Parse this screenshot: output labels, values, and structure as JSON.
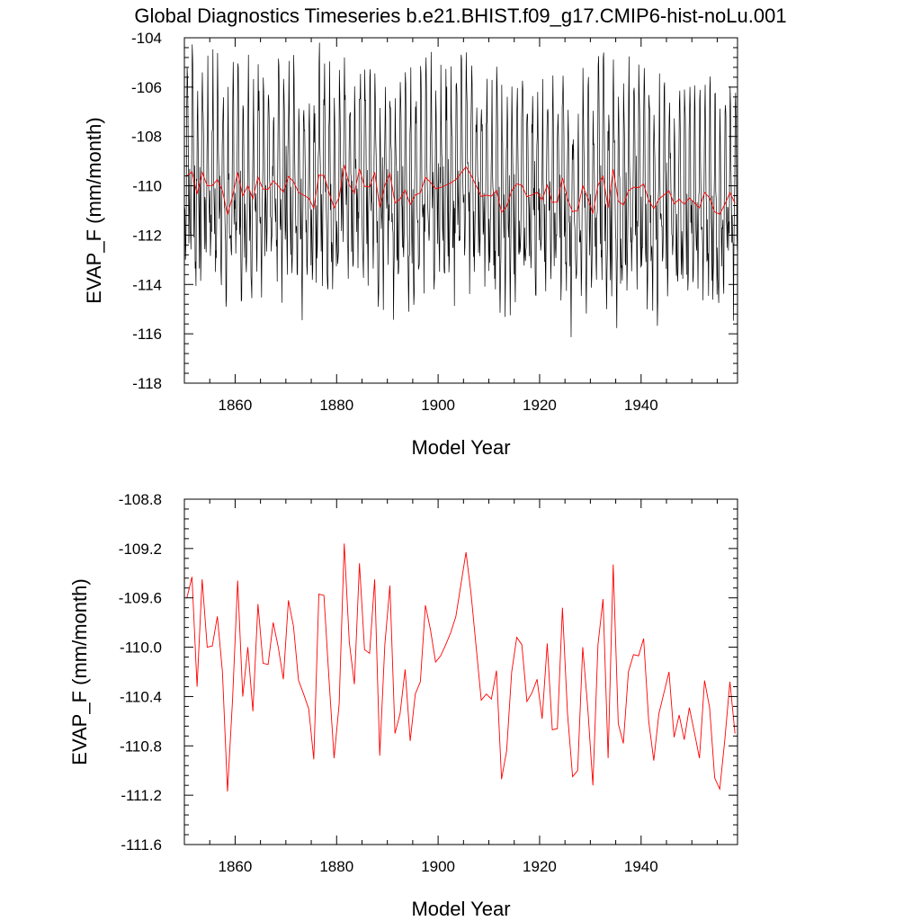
{
  "page": {
    "title": "Global Diagnostics Timeseries b.e21.BHIST.f09_g17.CMIP6-hist-noLu.001"
  },
  "chart_data": [
    {
      "type": "line",
      "xlabel": "Model Year",
      "ylabel": "EVAP_F (mm/month)",
      "xlim": [
        1850,
        1959
      ],
      "ylim": [
        -118,
        -104
      ],
      "xticks": [
        1860,
        1880,
        1900,
        1920,
        1940
      ],
      "xtick_labels": [
        "1860",
        "1880",
        "1900",
        "1920",
        "1940"
      ],
      "yticks": [
        -104,
        -106,
        -108,
        -110,
        -112,
        -114,
        -116,
        -118
      ],
      "ytick_labels": [
        "-104",
        "-106",
        "-108",
        "-110",
        "-112",
        "-114",
        "-116",
        "-118"
      ],
      "grid": false,
      "monthly_series": {
        "color": "#000000",
        "start_year": 1850,
        "months_per_year": 12,
        "annual_cycle_offsets": [
          -0.2,
          -1.8,
          -3.0,
          -2.2,
          -0.6,
          1.3,
          3.0,
          3.3,
          2.0,
          0.3,
          -1.0,
          -1.5
        ]
      },
      "series": [
        {
          "color": "#ff0000",
          "x": [
            1850,
            1851,
            1852,
            1853,
            1854,
            1855,
            1856,
            1857,
            1858,
            1859,
            1860,
            1861,
            1862,
            1863,
            1864,
            1865,
            1866,
            1867,
            1868,
            1869,
            1870,
            1871,
            1872,
            1873,
            1874,
            1875,
            1876,
            1877,
            1878,
            1879,
            1880,
            1881,
            1882,
            1883,
            1884,
            1885,
            1886,
            1887,
            1888,
            1889,
            1890,
            1891,
            1892,
            1893,
            1894,
            1895,
            1896,
            1897,
            1898,
            1899,
            1900,
            1901,
            1902,
            1903,
            1904,
            1905,
            1906,
            1907,
            1908,
            1909,
            1910,
            1911,
            1912,
            1913,
            1914,
            1915,
            1916,
            1917,
            1918,
            1919,
            1920,
            1921,
            1922,
            1923,
            1924,
            1925,
            1926,
            1927,
            1928,
            1929,
            1930,
            1931,
            1932,
            1933,
            1934,
            1935,
            1936,
            1937,
            1938,
            1939,
            1940,
            1941,
            1942,
            1943,
            1944,
            1945,
            1946,
            1947,
            1948,
            1949,
            1950,
            1951,
            1952,
            1953,
            1954,
            1955,
            1956,
            1957,
            1958
          ],
          "values": [
            -109.6,
            -109.43,
            -110.32,
            -109.45,
            -110.0,
            -109.99,
            -109.75,
            -110.2,
            -111.17,
            -110.42,
            -109.46,
            -110.4,
            -110.0,
            -110.52,
            -109.65,
            -110.13,
            -110.14,
            -109.8,
            -110.0,
            -110.26,
            -109.62,
            -109.83,
            -110.27,
            -110.38,
            -110.5,
            -110.91,
            -109.57,
            -109.58,
            -110.26,
            -110.9,
            -110.46,
            -109.16,
            -109.96,
            -110.3,
            -109.32,
            -110.02,
            -110.05,
            -109.45,
            -110.88,
            -109.98,
            -109.5,
            -110.7,
            -110.54,
            -110.18,
            -110.76,
            -110.38,
            -110.28,
            -109.66,
            -109.86,
            -110.12,
            -110.07,
            -109.98,
            -109.88,
            -109.75,
            -109.49,
            -109.23,
            -109.57,
            -110.0,
            -110.43,
            -110.38,
            -110.42,
            -110.19,
            -111.07,
            -110.84,
            -110.2,
            -109.92,
            -109.98,
            -110.44,
            -110.37,
            -110.26,
            -110.58,
            -109.97,
            -110.67,
            -110.66,
            -109.68,
            -110.54,
            -111.05,
            -111.0,
            -110.0,
            -110.5,
            -111.12,
            -109.98,
            -109.61,
            -110.9,
            -109.33,
            -110.62,
            -110.78,
            -110.2,
            -110.06,
            -110.07,
            -109.93,
            -110.6,
            -110.92,
            -110.54,
            -110.37,
            -110.2,
            -110.73,
            -110.55,
            -110.75,
            -110.49,
            -110.69,
            -110.9,
            -110.27,
            -110.49,
            -111.06,
            -111.15,
            -110.75,
            -110.28,
            -110.7
          ]
        }
      ]
    },
    {
      "type": "line",
      "xlabel": "Model Year",
      "ylabel": "EVAP_F (mm/month)",
      "xlim": [
        1850,
        1959
      ],
      "ylim": [
        -111.6,
        -108.8
      ],
      "xticks": [
        1860,
        1880,
        1900,
        1920,
        1940
      ],
      "xtick_labels": [
        "1860",
        "1880",
        "1900",
        "1920",
        "1940"
      ],
      "yticks": [
        -108.8,
        -109.2,
        -109.6,
        -110.0,
        -110.4,
        -110.8,
        -111.2,
        -111.6
      ],
      "ytick_labels": [
        "-108.8",
        "-109.2",
        "-109.6",
        "-110.0",
        "-110.4",
        "-110.8",
        "-111.2",
        "-111.6"
      ],
      "grid": false,
      "series": [
        {
          "color": "#ff0000",
          "x": [
            1850,
            1851,
            1852,
            1853,
            1854,
            1855,
            1856,
            1857,
            1858,
            1859,
            1860,
            1861,
            1862,
            1863,
            1864,
            1865,
            1866,
            1867,
            1868,
            1869,
            1870,
            1871,
            1872,
            1873,
            1874,
            1875,
            1876,
            1877,
            1878,
            1879,
            1880,
            1881,
            1882,
            1883,
            1884,
            1885,
            1886,
            1887,
            1888,
            1889,
            1890,
            1891,
            1892,
            1893,
            1894,
            1895,
            1896,
            1897,
            1898,
            1899,
            1900,
            1901,
            1902,
            1903,
            1904,
            1905,
            1906,
            1907,
            1908,
            1909,
            1910,
            1911,
            1912,
            1913,
            1914,
            1915,
            1916,
            1917,
            1918,
            1919,
            1920,
            1921,
            1922,
            1923,
            1924,
            1925,
            1926,
            1927,
            1928,
            1929,
            1930,
            1931,
            1932,
            1933,
            1934,
            1935,
            1936,
            1937,
            1938,
            1939,
            1940,
            1941,
            1942,
            1943,
            1944,
            1945,
            1946,
            1947,
            1948,
            1949,
            1950,
            1951,
            1952,
            1953,
            1954,
            1955,
            1956,
            1957,
            1958
          ],
          "values": [
            -109.6,
            -109.43,
            -110.32,
            -109.45,
            -110.0,
            -109.99,
            -109.75,
            -110.2,
            -111.17,
            -110.42,
            -109.46,
            -110.4,
            -110.0,
            -110.52,
            -109.65,
            -110.13,
            -110.14,
            -109.8,
            -110.0,
            -110.26,
            -109.62,
            -109.83,
            -110.27,
            -110.38,
            -110.5,
            -110.91,
            -109.57,
            -109.58,
            -110.26,
            -110.9,
            -110.46,
            -109.16,
            -109.96,
            -110.3,
            -109.32,
            -110.02,
            -110.05,
            -109.45,
            -110.88,
            -109.98,
            -109.5,
            -110.7,
            -110.54,
            -110.18,
            -110.76,
            -110.38,
            -110.28,
            -109.66,
            -109.86,
            -110.12,
            -110.07,
            -109.98,
            -109.88,
            -109.75,
            -109.49,
            -109.23,
            -109.57,
            -110.0,
            -110.43,
            -110.38,
            -110.42,
            -110.19,
            -111.07,
            -110.84,
            -110.2,
            -109.92,
            -109.98,
            -110.44,
            -110.37,
            -110.26,
            -110.58,
            -109.97,
            -110.67,
            -110.66,
            -109.68,
            -110.54,
            -111.05,
            -111.0,
            -110.0,
            -110.5,
            -111.12,
            -109.98,
            -109.61,
            -110.9,
            -109.33,
            -110.62,
            -110.78,
            -110.2,
            -110.06,
            -110.07,
            -109.93,
            -110.6,
            -110.92,
            -110.54,
            -110.37,
            -110.2,
            -110.73,
            -110.55,
            -110.75,
            -110.49,
            -110.69,
            -110.9,
            -110.27,
            -110.49,
            -111.06,
            -111.15,
            -110.75,
            -110.28,
            -110.7
          ]
        }
      ]
    }
  ]
}
